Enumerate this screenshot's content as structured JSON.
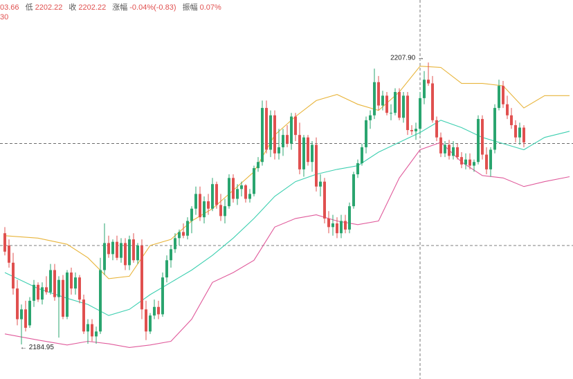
{
  "header": {
    "open_partial": "03.66",
    "low_label": "低",
    "low_value": "2202.22",
    "close_label": "收",
    "close_value": "2202.22",
    "change_label": "涨幅",
    "change_value": "-0.04%(-0.83)",
    "amplitude_label": "振幅",
    "amplitude_value": "0.07%",
    "indicator_partial": "30"
  },
  "chart_data": {
    "type": "candlestick",
    "y_range": [
      2182.3,
      2211.3
    ],
    "crosshair": {
      "candle_index": 100,
      "price": 2201.3
    },
    "reference_price": 2193.0,
    "annotations": [
      {
        "text": "2207.90 →",
        "candle_index": 102,
        "price": 2207.9
      },
      {
        "text": "← 2184.95",
        "candle_index": 4,
        "price": 2184.95
      }
    ],
    "colors": {
      "up": "#2aa56f",
      "down": "#e0504f",
      "upper_band": "#e8b43a",
      "middle_band": "#3ccfb0",
      "lower_band": "#e05a9b"
    },
    "candles": [
      [
        2194.0,
        2194.5,
        2192.2,
        2192.5
      ],
      [
        2193.0,
        2193.5,
        2191.2,
        2191.6
      ],
      [
        2191.6,
        2192.4,
        2189.0,
        2189.5
      ],
      [
        2189.5,
        2190.2,
        2186.5,
        2187.0
      ],
      [
        2187.0,
        2188.2,
        2184.95,
        2187.8
      ],
      [
        2187.8,
        2188.5,
        2186.0,
        2186.3
      ],
      [
        2186.5,
        2188.8,
        2186.3,
        2188.5
      ],
      [
        2188.5,
        2190.2,
        2188.0,
        2189.8
      ],
      [
        2189.8,
        2190.0,
        2188.4,
        2188.6
      ],
      [
        2188.6,
        2190.0,
        2188.2,
        2189.6
      ],
      [
        2189.6,
        2190.5,
        2189.0,
        2189.2
      ],
      [
        2189.2,
        2191.5,
        2189.0,
        2191.0
      ],
      [
        2191.0,
        2191.5,
        2188.5,
        2188.8
      ],
      [
        2188.8,
        2190.5,
        2185.5,
        2190.2
      ],
      [
        2190.2,
        2190.6,
        2187.0,
        2187.2
      ],
      [
        2187.2,
        2191.0,
        2187.0,
        2190.8
      ],
      [
        2190.8,
        2191.2,
        2189.0,
        2189.5
      ],
      [
        2189.5,
        2190.8,
        2189.0,
        2190.4
      ],
      [
        2190.4,
        2190.6,
        2188.3,
        2188.6
      ],
      [
        2188.6,
        2189.0,
        2185.8,
        2186.0
      ],
      [
        2186.0,
        2187.0,
        2185.0,
        2186.6
      ],
      [
        2186.6,
        2187.0,
        2185.2,
        2185.6
      ],
      [
        2185.6,
        2186.4,
        2185.0,
        2186.0
      ],
      [
        2186.0,
        2192.0,
        2185.8,
        2191.0
      ],
      [
        2191.0,
        2194.8,
        2190.6,
        2193.2
      ],
      [
        2193.2,
        2193.8,
        2192.0,
        2192.3
      ],
      [
        2192.3,
        2193.5,
        2191.8,
        2193.3
      ],
      [
        2193.3,
        2193.8,
        2191.8,
        2192.0
      ],
      [
        2192.0,
        2193.6,
        2191.6,
        2193.2
      ],
      [
        2193.2,
        2193.6,
        2191.0,
        2191.4
      ],
      [
        2191.4,
        2193.8,
        2191.0,
        2193.5
      ],
      [
        2193.5,
        2194.0,
        2191.6,
        2191.8
      ],
      [
        2191.8,
        2193.2,
        2191.5,
        2193.0
      ],
      [
        2193.0,
        2193.5,
        2187.0,
        2187.8
      ],
      [
        2187.8,
        2188.5,
        2185.3,
        2186.0
      ],
      [
        2186.0,
        2187.5,
        2185.8,
        2187.3
      ],
      [
        2187.3,
        2188.6,
        2187.0,
        2188.0
      ],
      [
        2188.0,
        2188.5,
        2187.0,
        2187.4
      ],
      [
        2187.4,
        2190.8,
        2187.2,
        2190.4
      ],
      [
        2190.4,
        2192.2,
        2190.0,
        2191.8
      ],
      [
        2191.8,
        2193.0,
        2191.2,
        2192.7
      ],
      [
        2192.7,
        2194.0,
        2192.4,
        2193.6
      ],
      [
        2193.6,
        2194.3,
        2193.0,
        2194.1
      ],
      [
        2194.1,
        2194.8,
        2193.6,
        2193.8
      ],
      [
        2193.8,
        2195.3,
        2193.5,
        2195.0
      ],
      [
        2195.0,
        2196.2,
        2194.0,
        2196.0
      ],
      [
        2196.0,
        2197.8,
        2195.5,
        2197.2
      ],
      [
        2197.2,
        2197.8,
        2195.0,
        2195.3
      ],
      [
        2195.3,
        2197.0,
        2194.8,
        2196.6
      ],
      [
        2196.6,
        2197.2,
        2195.5,
        2196.0
      ],
      [
        2196.0,
        2198.5,
        2195.8,
        2198.0
      ],
      [
        2198.0,
        2198.2,
        2196.0,
        2196.3
      ],
      [
        2196.3,
        2197.2,
        2195.0,
        2195.4
      ],
      [
        2195.4,
        2196.8,
        2194.8,
        2196.2
      ],
      [
        2196.2,
        2198.8,
        2196.0,
        2198.5
      ],
      [
        2198.5,
        2198.8,
        2196.5,
        2196.8
      ],
      [
        2196.8,
        2198.0,
        2196.3,
        2197.6
      ],
      [
        2197.6,
        2198.2,
        2197.0,
        2197.9
      ],
      [
        2197.9,
        2198.0,
        2196.5,
        2196.8
      ],
      [
        2196.8,
        2197.6,
        2196.5,
        2197.2
      ],
      [
        2197.2,
        2199.5,
        2197.0,
        2199.3
      ],
      [
        2199.3,
        2200.2,
        2199.0,
        2199.8
      ],
      [
        2199.8,
        2204.8,
        2199.5,
        2204.2
      ],
      [
        2204.2,
        2204.8,
        2200.5,
        2200.8
      ],
      [
        2200.8,
        2204.0,
        2200.2,
        2203.6
      ],
      [
        2203.6,
        2204.0,
        2200.0,
        2200.5
      ],
      [
        2200.5,
        2202.5,
        2200.0,
        2201.0
      ],
      [
        2201.0,
        2202.5,
        2200.3,
        2202.0
      ],
      [
        2202.0,
        2202.8,
        2201.0,
        2201.3
      ],
      [
        2201.3,
        2203.8,
        2200.8,
        2203.5
      ],
      [
        2203.5,
        2203.8,
        2201.5,
        2202.0
      ],
      [
        2202.0,
        2203.0,
        2198.8,
        2199.2
      ],
      [
        2199.2,
        2202.0,
        2198.6,
        2201.8
      ],
      [
        2201.8,
        2202.0,
        2199.5,
        2199.8
      ],
      [
        2199.8,
        2201.5,
        2199.0,
        2201.2
      ],
      [
        2201.2,
        2201.8,
        2197.4,
        2197.8
      ],
      [
        2197.8,
        2198.8,
        2197.0,
        2198.2
      ],
      [
        2198.2,
        2198.5,
        2194.8,
        2195.2
      ],
      [
        2195.2,
        2195.8,
        2194.0,
        2194.5
      ],
      [
        2194.5,
        2195.5,
        2193.8,
        2194.8
      ],
      [
        2194.8,
        2195.3,
        2193.6,
        2194.0
      ],
      [
        2194.0,
        2195.5,
        2193.6,
        2195.0
      ],
      [
        2195.0,
        2195.5,
        2194.0,
        2194.3
      ],
      [
        2194.3,
        2196.5,
        2194.0,
        2196.2
      ],
      [
        2196.2,
        2199.0,
        2196.0,
        2198.8
      ],
      [
        2198.8,
        2200.0,
        2198.5,
        2199.7
      ],
      [
        2199.7,
        2201.3,
        2199.5,
        2201.0
      ],
      [
        2201.0,
        2203.5,
        2200.5,
        2203.2
      ],
      [
        2203.2,
        2204.0,
        2202.5,
        2203.6
      ],
      [
        2203.6,
        2207.4,
        2203.3,
        2206.3
      ],
      [
        2206.3,
        2206.8,
        2204.0,
        2204.4
      ],
      [
        2204.4,
        2205.6,
        2204.0,
        2205.2
      ],
      [
        2205.2,
        2205.5,
        2203.6,
        2203.8
      ],
      [
        2203.8,
        2204.5,
        2203.2,
        2203.8
      ],
      [
        2203.8,
        2205.8,
        2203.6,
        2205.5
      ],
      [
        2205.5,
        2205.8,
        2203.2,
        2203.4
      ],
      [
        2203.4,
        2205.5,
        2203.0,
        2205.2
      ],
      [
        2205.2,
        2205.5,
        2202.0,
        2202.4
      ],
      [
        2202.4,
        2202.8,
        2202.0,
        2202.3
      ],
      [
        2202.3,
        2203.0,
        2201.6,
        2202.5
      ],
      [
        2202.5,
        2205.5,
        2202.0,
        2205.0
      ],
      [
        2205.0,
        2207.2,
        2204.5,
        2206.5
      ],
      [
        2206.5,
        2207.9,
        2206.0,
        2206.2
      ],
      [
        2206.2,
        2206.8,
        2203.0,
        2203.2
      ],
      [
        2203.2,
        2203.5,
        2201.5,
        2201.8
      ],
      [
        2201.8,
        2202.2,
        2200.2,
        2200.5
      ],
      [
        2200.5,
        2201.5,
        2200.2,
        2201.2
      ],
      [
        2201.2,
        2201.6,
        2200.0,
        2200.3
      ],
      [
        2200.3,
        2201.5,
        2200.0,
        2201.0
      ],
      [
        2201.0,
        2201.3,
        2200.0,
        2200.2
      ],
      [
        2200.2,
        2200.6,
        2199.3,
        2199.6
      ],
      [
        2199.6,
        2200.5,
        2199.2,
        2200.0
      ],
      [
        2200.0,
        2200.5,
        2199.2,
        2199.5
      ],
      [
        2199.5,
        2200.0,
        2199.0,
        2199.8
      ],
      [
        2199.8,
        2203.6,
        2199.6,
        2203.3
      ],
      [
        2203.3,
        2203.6,
        2200.0,
        2200.4
      ],
      [
        2200.4,
        2201.0,
        2198.8,
        2199.2
      ],
      [
        2199.2,
        2201.0,
        2198.6,
        2200.8
      ],
      [
        2200.8,
        2204.5,
        2200.5,
        2204.2
      ],
      [
        2204.2,
        2206.5,
        2204.0,
        2206.0
      ],
      [
        2206.0,
        2206.4,
        2204.2,
        2204.5
      ],
      [
        2204.5,
        2205.2,
        2203.3,
        2203.6
      ],
      [
        2203.6,
        2204.2,
        2202.5,
        2202.8
      ],
      [
        2202.8,
        2203.2,
        2201.4,
        2201.8
      ],
      [
        2201.8,
        2203.0,
        2201.2,
        2202.6
      ],
      [
        2202.6,
        2202.8,
        2201.0,
        2201.4
      ]
    ],
    "upper_band": [
      [
        0,
        2193.8
      ],
      [
        8,
        2193.6
      ],
      [
        15,
        2193.1
      ],
      [
        20,
        2192.0
      ],
      [
        25,
        2190.3
      ],
      [
        30,
        2190.5
      ],
      [
        35,
        2193.0
      ],
      [
        40,
        2193.5
      ],
      [
        45,
        2195.0
      ],
      [
        50,
        2196.0
      ],
      [
        55,
        2197.5
      ],
      [
        60,
        2199.0
      ],
      [
        65,
        2202.0
      ],
      [
        70,
        2203.5
      ],
      [
        75,
        2204.8
      ],
      [
        80,
        2205.3
      ],
      [
        85,
        2204.5
      ],
      [
        90,
        2204.0
      ],
      [
        95,
        2205.5
      ],
      [
        100,
        2207.6
      ],
      [
        105,
        2207.5
      ],
      [
        110,
        2206.2
      ],
      [
        115,
        2206.2
      ],
      [
        120,
        2206.0
      ],
      [
        125,
        2204.2
      ],
      [
        130,
        2205.2
      ],
      [
        136,
        2205.2
      ]
    ],
    "middle_band": [
      [
        0,
        2190.8
      ],
      [
        8,
        2189.5
      ],
      [
        15,
        2188.7
      ],
      [
        20,
        2188.2
      ],
      [
        25,
        2187.3
      ],
      [
        30,
        2187.8
      ],
      [
        35,
        2189.0
      ],
      [
        40,
        2190.0
      ],
      [
        45,
        2191.0
      ],
      [
        50,
        2192.2
      ],
      [
        55,
        2193.6
      ],
      [
        60,
        2195.2
      ],
      [
        65,
        2197.0
      ],
      [
        70,
        2198.2
      ],
      [
        75,
        2198.8
      ],
      [
        80,
        2199.2
      ],
      [
        85,
        2199.5
      ],
      [
        90,
        2200.6
      ],
      [
        95,
        2201.4
      ],
      [
        100,
        2202.2
      ],
      [
        105,
        2203.2
      ],
      [
        110,
        2202.6
      ],
      [
        115,
        2201.8
      ],
      [
        120,
        2201.3
      ],
      [
        125,
        2200.8
      ],
      [
        130,
        2201.8
      ],
      [
        136,
        2202.3
      ]
    ],
    "lower_band": [
      [
        0,
        2185.8
      ],
      [
        8,
        2185.3
      ],
      [
        15,
        2184.9
      ],
      [
        20,
        2185.2
      ],
      [
        25,
        2185.0
      ],
      [
        30,
        2184.7
      ],
      [
        35,
        2184.9
      ],
      [
        40,
        2185.2
      ],
      [
        45,
        2187.0
      ],
      [
        50,
        2190.0
      ],
      [
        55,
        2190.8
      ],
      [
        60,
        2191.8
      ],
      [
        65,
        2194.5
      ],
      [
        70,
        2195.2
      ],
      [
        75,
        2195.5
      ],
      [
        80,
        2195.0
      ],
      [
        85,
        2194.7
      ],
      [
        90,
        2195.0
      ],
      [
        95,
        2198.5
      ],
      [
        100,
        2200.8
      ],
      [
        105,
        2201.4
      ],
      [
        110,
        2199.8
      ],
      [
        115,
        2198.7
      ],
      [
        120,
        2198.5
      ],
      [
        125,
        2197.8
      ],
      [
        130,
        2198.2
      ],
      [
        136,
        2198.6
      ]
    ]
  }
}
